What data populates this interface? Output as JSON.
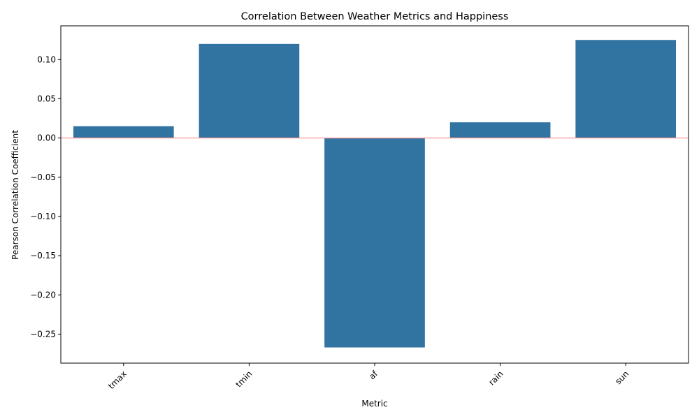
{
  "chart_data": {
    "type": "bar",
    "title": "Correlation Between Weather Metrics and Happiness",
    "xlabel": "Metric",
    "ylabel": "Pearson Correlation Coefficient",
    "categories": [
      "tmax",
      "tmin",
      "af",
      "rain",
      "sun"
    ],
    "values": [
      0.015,
      0.12,
      -0.267,
      0.02,
      0.125
    ],
    "ylim": [
      -0.287,
      0.143
    ],
    "yticks": [
      0.1,
      0.05,
      0.0,
      -0.05,
      -0.1,
      -0.15,
      -0.2,
      -0.25
    ],
    "ytick_labels": [
      "0.10",
      "0.05",
      "0.00",
      "−0.05",
      "−0.10",
      "−0.15",
      "−0.20",
      "−0.25"
    ],
    "grid": false,
    "reference_line": {
      "y": 0,
      "color": "#ff9999"
    },
    "colors": {
      "bar": "#3274a1",
      "axis": "#000000"
    }
  }
}
